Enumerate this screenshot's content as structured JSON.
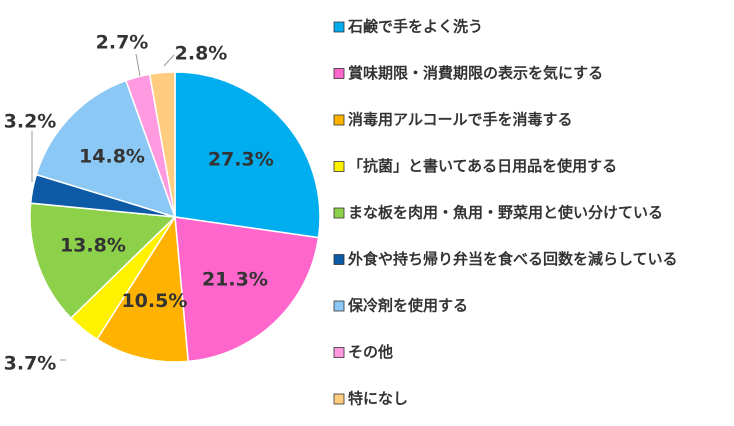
{
  "chart_data": {
    "type": "pie",
    "title": "",
    "legend_position": "right",
    "start_angle": "top",
    "direction": "clockwise",
    "slices": [
      {
        "label": "石鹸で手をよく洗う",
        "value": 27.3,
        "display": "27.3%",
        "color": "#00AEEF",
        "label_position": "inside"
      },
      {
        "label": "賞味期限・消費期限の表示を気にする",
        "value": 21.3,
        "display": "21.3%",
        "color": "#FF66CC",
        "label_position": "inside"
      },
      {
        "label": "消毒用アルコールで手を消毒する",
        "value": 10.5,
        "display": "10.5%",
        "color": "#FFB300",
        "label_position": "inside"
      },
      {
        "label": "「抗菌」と書いてある日用品を使用する",
        "value": 3.7,
        "display": "3.7%",
        "color": "#FFF200",
        "label_position": "outside"
      },
      {
        "label": "まな板を肉用・魚用・野菜用と使い分けている",
        "value": 13.8,
        "display": "13.8%",
        "color": "#8DD04A",
        "label_position": "inside"
      },
      {
        "label": "外食や持ち帰り弁当を食べる回数を減らしている",
        "value": 3.2,
        "display": "3.2%",
        "color": "#0D5AA7",
        "label_position": "outside"
      },
      {
        "label": "保冷剤を使用する",
        "value": 14.8,
        "display": "14.8%",
        "color": "#8CC8F5",
        "label_position": "inside"
      },
      {
        "label": "その他",
        "value": 2.7,
        "display": "2.7%",
        "color": "#FF9AE0",
        "label_position": "outside"
      },
      {
        "label": "特になし",
        "value": 2.8,
        "display": "2.8%",
        "color": "#FFCC80",
        "label_position": "outside"
      }
    ]
  }
}
